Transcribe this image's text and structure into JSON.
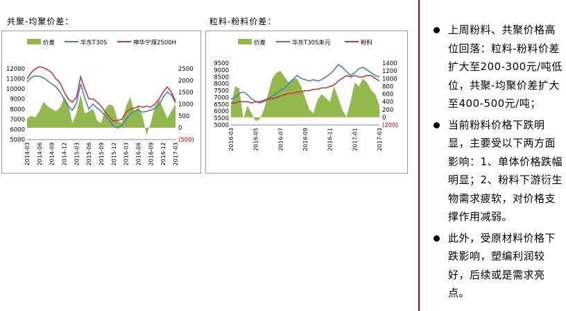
{
  "chart_data": [
    {
      "type": "line",
      "title": "共聚-均聚价差：",
      "legend": [
        "价差",
        "华东T30S",
        "神华宁煤2500H"
      ],
      "x_ticks": [
        "2014-03",
        "2014-06",
        "2014-09",
        "2014-12",
        "2015-03",
        "2015-06",
        "2015-09",
        "2015-12",
        "2016-03",
        "2016-06",
        "2016-09",
        "2016-12",
        "2017-03"
      ],
      "y_left_ticks": [
        "12000",
        "11000",
        "10000",
        "9000",
        "8000",
        "7000",
        "6000",
        "5000"
      ],
      "y_right_ticks": [
        "2500",
        "2000",
        "1500",
        "1000",
        "500",
        "0",
        "(500)"
      ],
      "ylim_left": [
        5000,
        12000
      ],
      "ylim_right": [
        -500,
        2500
      ],
      "colors": {
        "spread": "#92b84e",
        "s1": "#4a7ebb",
        "s2": "#be3a3a"
      },
      "x": [
        0,
        1,
        2,
        3,
        4,
        5,
        6,
        7,
        8,
        9,
        10,
        11,
        12,
        13,
        14,
        15,
        16,
        17,
        18,
        19,
        20,
        21,
        22,
        23,
        24,
        25,
        26,
        27,
        28,
        29,
        30,
        31,
        32,
        33,
        34,
        35,
        36
      ],
      "series": [
        {
          "name": "华东T30S",
          "axis": "left",
          "values": [
            10700,
            11100,
            11300,
            11250,
            11100,
            10800,
            10500,
            10200,
            9700,
            9000,
            8300,
            7900,
            8600,
            10500,
            9100,
            8000,
            8500,
            8100,
            7800,
            7300,
            6900,
            6300,
            6150,
            6400,
            7000,
            7500,
            7800,
            7900,
            7700,
            7800,
            7900,
            8100,
            8400,
            9200,
            9700,
            9400,
            8600
          ]
        },
        {
          "name": "神华宁煤2500H",
          "axis": "left",
          "values": [
            11000,
            11600,
            12000,
            12200,
            12100,
            11900,
            11600,
            11000,
            10600,
            9700,
            9000,
            8700,
            9200,
            11200,
            10000,
            9000,
            9000,
            8700,
            8300,
            7700,
            7200,
            6800,
            6900,
            7000,
            7700,
            8000,
            8100,
            8300,
            8200,
            8300,
            8200,
            8500,
            9000,
            9700,
            10200,
            9700,
            8800
          ]
        },
        {
          "name": "价差",
          "axis": "right",
          "values": [
            400,
            500,
            450,
            700,
            1100,
            900,
            800,
            700,
            850,
            1300,
            1000,
            200,
            600,
            1400,
            600,
            700,
            800,
            300,
            200,
            800,
            1000,
            900,
            300,
            200,
            900,
            1300,
            700,
            900,
            500,
            -300,
            200,
            900,
            1200,
            800,
            400,
            700,
            1000
          ]
        }
      ]
    },
    {
      "type": "line",
      "title": "粒料-粉料价差：",
      "legend": [
        "价差",
        "华东T30S未元",
        "粉料"
      ],
      "x_ticks": [
        "2016-03",
        "2016-05",
        "2016-07",
        "2016-09",
        "2016-11",
        "2017-01",
        "2017-03"
      ],
      "y_left_ticks": [
        "9500",
        "9000",
        "8500",
        "8000",
        "7500",
        "7000",
        "6500",
        "6000",
        "5500",
        "5000"
      ],
      "y_right_ticks": [
        "1400",
        "1200",
        "1000",
        "800",
        "600",
        "400",
        "200",
        "0",
        "(200)"
      ],
      "ylim_left": [
        5000,
        9500
      ],
      "ylim_right": [
        -200,
        1400
      ],
      "colors": {
        "spread": "#92b84e",
        "s1": "#4a7ebb",
        "s2": "#be3a3a"
      },
      "x": [
        0,
        1,
        2,
        3,
        4,
        5,
        6,
        7,
        8,
        9,
        10,
        11,
        12,
        13,
        14,
        15,
        16,
        17,
        18,
        19,
        20,
        21,
        22,
        23,
        24,
        25,
        26,
        27,
        28,
        29,
        30,
        31,
        32,
        33,
        34,
        35,
        36
      ],
      "series": [
        {
          "name": "华东T30S未元",
          "axis": "left",
          "values": [
            6900,
            7000,
            7300,
            7400,
            7200,
            6900,
            6700,
            6600,
            6700,
            6900,
            7100,
            7300,
            7500,
            7700,
            8000,
            8300,
            8600,
            8400,
            8300,
            8200,
            8300,
            8200,
            8300,
            8500,
            8700,
            9000,
            9400,
            9200,
            8900,
            8600,
            8800,
            9100,
            9200,
            9000,
            8800,
            8600,
            8500
          ]
        },
        {
          "name": "粉料",
          "axis": "left",
          "values": [
            6600,
            6600,
            6700,
            6700,
            6700,
            6600,
            6700,
            6700,
            6800,
            6900,
            6900,
            7000,
            7100,
            7200,
            7300,
            7300,
            7400,
            7400,
            7500,
            7500,
            7600,
            7600,
            7700,
            7700,
            7800,
            7900,
            8200,
            8400,
            8600,
            8500,
            8600,
            8500,
            8500,
            8600,
            8600,
            8400,
            8200
          ]
        },
        {
          "name": "价差",
          "axis": "right",
          "values": [
            300,
            800,
            750,
            -50,
            300,
            100,
            -100,
            -50,
            200,
            600,
            1000,
            1150,
            1200,
            1050,
            900,
            1000,
            1000,
            800,
            500,
            200,
            100,
            450,
            600,
            500,
            400,
            800,
            500,
            200,
            0,
            400,
            900,
            800,
            1000,
            900,
            700,
            600,
            300
          ]
        }
      ]
    }
  ],
  "sidebar": {
    "bullets": [
      "上周粉料、共聚价格高位回落：粒料-粉料价差扩大至200-300元/吨低位，共聚-均聚价差扩大至400-500元/吨；",
      "当前粉料价格下跌明显，主要受以下两方面影响：1、单体价格跌幅明显；2、粉料下游衍生物需求疲软，对价格支撑作用减弱。",
      "此外，受原材料价格下跌影响，塑编利润较好，后续或是需求亮点。"
    ]
  }
}
